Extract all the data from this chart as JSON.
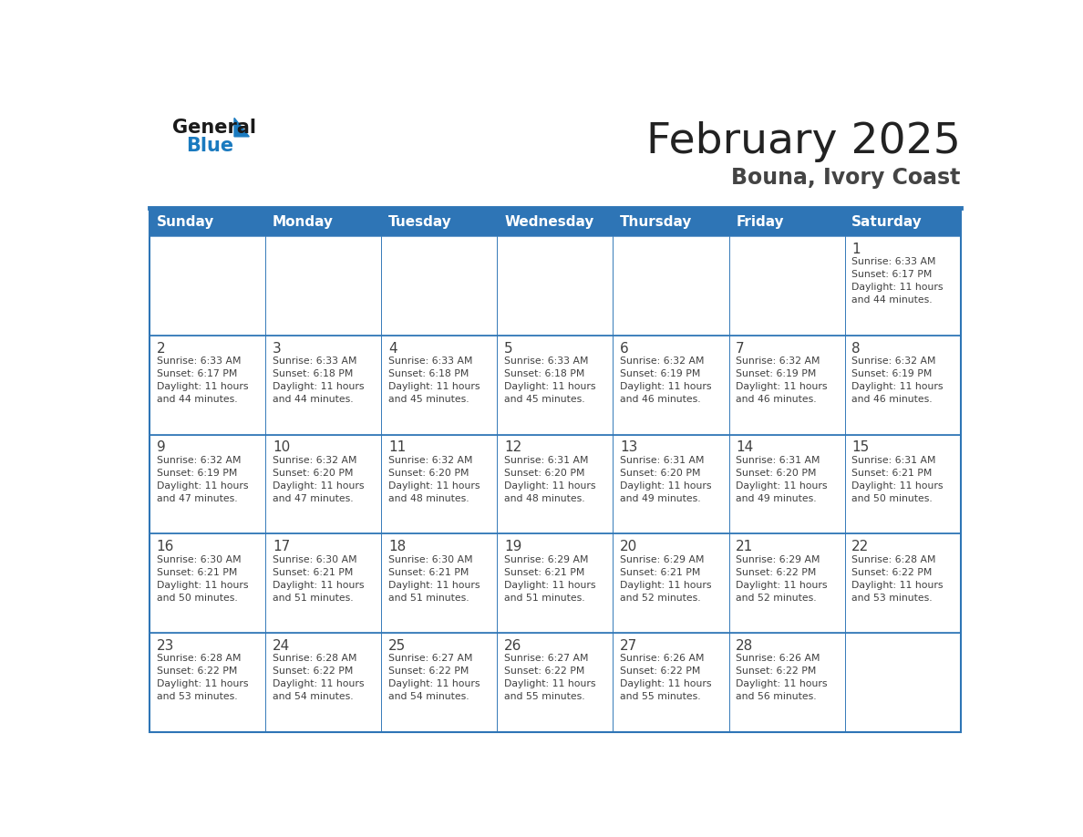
{
  "title": "February 2025",
  "subtitle": "Bouna, Ivory Coast",
  "days_of_week": [
    "Sunday",
    "Monday",
    "Tuesday",
    "Wednesday",
    "Thursday",
    "Friday",
    "Saturday"
  ],
  "header_bg": "#2e75b6",
  "header_text_color": "#ffffff",
  "cell_bg_white": "#ffffff",
  "border_color": "#2e75b6",
  "text_color": "#404040",
  "title_color": "#222222",
  "subtitle_color": "#444444",
  "logo_text_color": "#1a1a1a",
  "logo_blue_color": "#1a7abf",
  "weeks": [
    [
      {
        "day": "",
        "info": ""
      },
      {
        "day": "",
        "info": ""
      },
      {
        "day": "",
        "info": ""
      },
      {
        "day": "",
        "info": ""
      },
      {
        "day": "",
        "info": ""
      },
      {
        "day": "",
        "info": ""
      },
      {
        "day": "1",
        "info": "Sunrise: 6:33 AM\nSunset: 6:17 PM\nDaylight: 11 hours\nand 44 minutes."
      }
    ],
    [
      {
        "day": "2",
        "info": "Sunrise: 6:33 AM\nSunset: 6:17 PM\nDaylight: 11 hours\nand 44 minutes."
      },
      {
        "day": "3",
        "info": "Sunrise: 6:33 AM\nSunset: 6:18 PM\nDaylight: 11 hours\nand 44 minutes."
      },
      {
        "day": "4",
        "info": "Sunrise: 6:33 AM\nSunset: 6:18 PM\nDaylight: 11 hours\nand 45 minutes."
      },
      {
        "day": "5",
        "info": "Sunrise: 6:33 AM\nSunset: 6:18 PM\nDaylight: 11 hours\nand 45 minutes."
      },
      {
        "day": "6",
        "info": "Sunrise: 6:32 AM\nSunset: 6:19 PM\nDaylight: 11 hours\nand 46 minutes."
      },
      {
        "day": "7",
        "info": "Sunrise: 6:32 AM\nSunset: 6:19 PM\nDaylight: 11 hours\nand 46 minutes."
      },
      {
        "day": "8",
        "info": "Sunrise: 6:32 AM\nSunset: 6:19 PM\nDaylight: 11 hours\nand 46 minutes."
      }
    ],
    [
      {
        "day": "9",
        "info": "Sunrise: 6:32 AM\nSunset: 6:19 PM\nDaylight: 11 hours\nand 47 minutes."
      },
      {
        "day": "10",
        "info": "Sunrise: 6:32 AM\nSunset: 6:20 PM\nDaylight: 11 hours\nand 47 minutes."
      },
      {
        "day": "11",
        "info": "Sunrise: 6:32 AM\nSunset: 6:20 PM\nDaylight: 11 hours\nand 48 minutes."
      },
      {
        "day": "12",
        "info": "Sunrise: 6:31 AM\nSunset: 6:20 PM\nDaylight: 11 hours\nand 48 minutes."
      },
      {
        "day": "13",
        "info": "Sunrise: 6:31 AM\nSunset: 6:20 PM\nDaylight: 11 hours\nand 49 minutes."
      },
      {
        "day": "14",
        "info": "Sunrise: 6:31 AM\nSunset: 6:20 PM\nDaylight: 11 hours\nand 49 minutes."
      },
      {
        "day": "15",
        "info": "Sunrise: 6:31 AM\nSunset: 6:21 PM\nDaylight: 11 hours\nand 50 minutes."
      }
    ],
    [
      {
        "day": "16",
        "info": "Sunrise: 6:30 AM\nSunset: 6:21 PM\nDaylight: 11 hours\nand 50 minutes."
      },
      {
        "day": "17",
        "info": "Sunrise: 6:30 AM\nSunset: 6:21 PM\nDaylight: 11 hours\nand 51 minutes."
      },
      {
        "day": "18",
        "info": "Sunrise: 6:30 AM\nSunset: 6:21 PM\nDaylight: 11 hours\nand 51 minutes."
      },
      {
        "day": "19",
        "info": "Sunrise: 6:29 AM\nSunset: 6:21 PM\nDaylight: 11 hours\nand 51 minutes."
      },
      {
        "day": "20",
        "info": "Sunrise: 6:29 AM\nSunset: 6:21 PM\nDaylight: 11 hours\nand 52 minutes."
      },
      {
        "day": "21",
        "info": "Sunrise: 6:29 AM\nSunset: 6:22 PM\nDaylight: 11 hours\nand 52 minutes."
      },
      {
        "day": "22",
        "info": "Sunrise: 6:28 AM\nSunset: 6:22 PM\nDaylight: 11 hours\nand 53 minutes."
      }
    ],
    [
      {
        "day": "23",
        "info": "Sunrise: 6:28 AM\nSunset: 6:22 PM\nDaylight: 11 hours\nand 53 minutes."
      },
      {
        "day": "24",
        "info": "Sunrise: 6:28 AM\nSunset: 6:22 PM\nDaylight: 11 hours\nand 54 minutes."
      },
      {
        "day": "25",
        "info": "Sunrise: 6:27 AM\nSunset: 6:22 PM\nDaylight: 11 hours\nand 54 minutes."
      },
      {
        "day": "26",
        "info": "Sunrise: 6:27 AM\nSunset: 6:22 PM\nDaylight: 11 hours\nand 55 minutes."
      },
      {
        "day": "27",
        "info": "Sunrise: 6:26 AM\nSunset: 6:22 PM\nDaylight: 11 hours\nand 55 minutes."
      },
      {
        "day": "28",
        "info": "Sunrise: 6:26 AM\nSunset: 6:22 PM\nDaylight: 11 hours\nand 56 minutes."
      },
      {
        "day": "",
        "info": ""
      }
    ]
  ]
}
